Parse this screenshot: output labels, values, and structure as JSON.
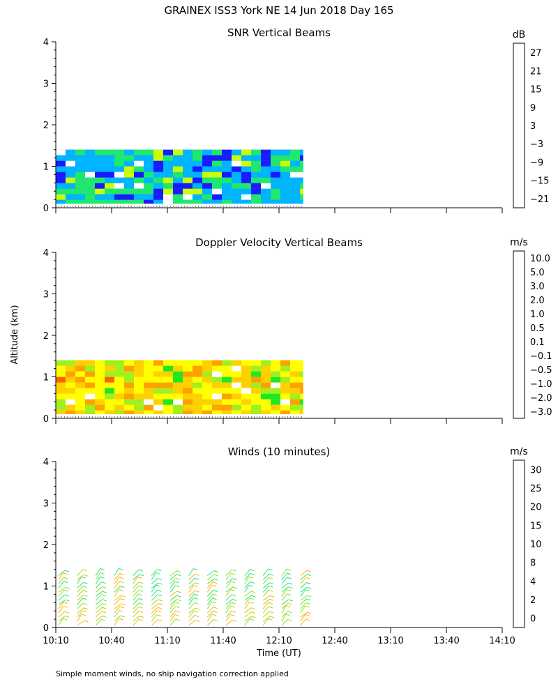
{
  "figure": {
    "title": "GRAINEX ISS3 York NE  14 Jun 2018 Day 165",
    "ylabel": "Altitude (km)",
    "xlabel": "Time (UT)",
    "footnote": "Simple moment winds, no ship navigation correction applied"
  },
  "chart_data": [
    {
      "type": "heatmap",
      "title": "SNR Vertical Beams",
      "xlabel": "Time (UT)",
      "ylabel": "Altitude (km)",
      "x_ticks": [
        "10:10",
        "10:40",
        "11:10",
        "11:40",
        "12:10",
        "12:40",
        "13:10",
        "13:40",
        "14:10"
      ],
      "y_ticks": [
        "0",
        "1",
        "2",
        "3",
        "4"
      ],
      "xlim": [
        "10:10",
        "14:10"
      ],
      "ylim": [
        0,
        4
      ],
      "data_extent": {
        "x": [
          "10:10",
          "12:23"
        ],
        "y": [
          0.1,
          1.4
        ]
      },
      "colorbar": {
        "unit": "dB",
        "labels": [
          "27",
          "21",
          "15",
          "9",
          "3",
          "−3",
          "−9",
          "−15",
          "−21"
        ],
        "colors": [
          "#ffd700",
          "#ff8c00",
          "#ff2000",
          "#4a0050",
          "#5a00a8",
          "#1a1aff",
          "#00b4ff",
          "#20e86c",
          "#ccff00"
        ]
      }
    },
    {
      "type": "heatmap",
      "title": "Doppler Velocity Vertical Beams",
      "xlabel": "Time (UT)",
      "ylabel": "Altitude (km)",
      "x_ticks": [
        "10:10",
        "10:40",
        "11:10",
        "11:40",
        "12:10",
        "12:40",
        "13:10",
        "13:40",
        "14:10"
      ],
      "y_ticks": [
        "0",
        "1",
        "2",
        "3",
        "4"
      ],
      "xlim": [
        "10:10",
        "14:10"
      ],
      "ylim": [
        0,
        4
      ],
      "data_extent": {
        "x": [
          "10:10",
          "12:23"
        ],
        "y": [
          0.1,
          1.4
        ]
      },
      "colorbar": {
        "unit": "m/s",
        "labels": [
          "10.0",
          "5.0",
          "3.0",
          "2.0",
          "1.0",
          "0.5",
          "0.1",
          "−0.1",
          "−0.5",
          "−1.0",
          "−2.0",
          "−3.0"
        ],
        "colors": [
          "#2a002a",
          "#5a00a8",
          "#2020d8",
          "#0040ff",
          "#00b4ff",
          "#20e820",
          "#a0f020",
          "#ffff00",
          "#ffd000",
          "#ffa000",
          "#ff6000",
          "#ff1010"
        ]
      }
    },
    {
      "type": "scatter",
      "title": "Winds (10 minutes)",
      "xlabel": "Time (UT)",
      "ylabel": "Altitude (km)",
      "x_ticks": [
        "10:10",
        "10:40",
        "11:10",
        "11:40",
        "12:10",
        "12:40",
        "13:10",
        "13:40",
        "14:10"
      ],
      "y_ticks": [
        "0",
        "1",
        "2",
        "3",
        "4"
      ],
      "xlim": [
        "10:10",
        "14:10"
      ],
      "ylim": [
        0,
        4
      ],
      "wind_profile_times": [
        "10:10",
        "10:20",
        "10:30",
        "10:40",
        "10:50",
        "11:00",
        "11:10",
        "11:20",
        "11:30",
        "11:40",
        "11:50",
        "12:00",
        "12:10",
        "12:20"
      ],
      "colorbar": {
        "unit": "m/s",
        "labels": [
          "30",
          "25",
          "20",
          "15",
          "10",
          "8",
          "4",
          "2",
          "0"
        ],
        "colors": [
          "#ff0000",
          "#ff6a00",
          "#ffb400",
          "#90e020",
          "#20e870",
          "#00a8ff",
          "#1010ff",
          "#500060",
          "#000000"
        ]
      }
    }
  ]
}
